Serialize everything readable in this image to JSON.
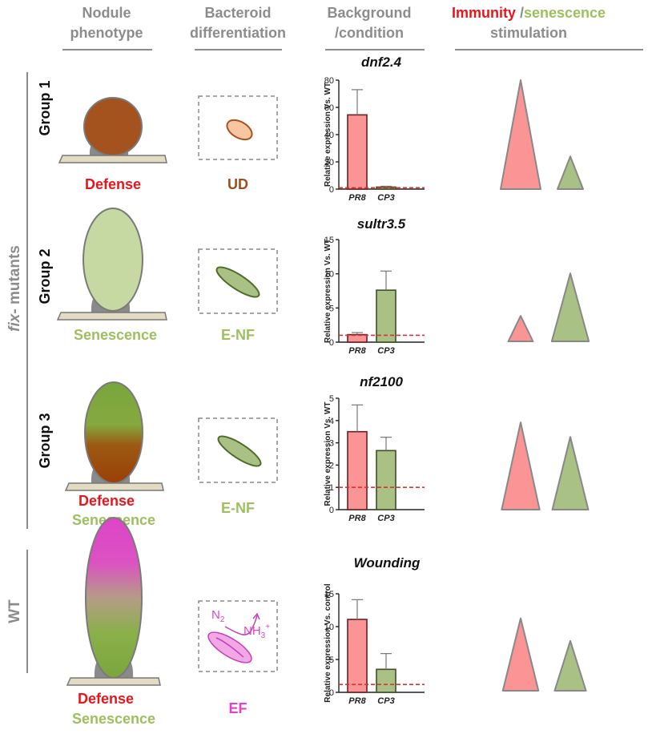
{
  "headers": {
    "nodule": [
      "Nodule",
      "phenotype"
    ],
    "bacteroid": [
      "Bacteroid",
      "differentiation"
    ],
    "background": [
      "Background",
      "/condition"
    ],
    "stim_immunity": "Immunity",
    "stim_sep": " /",
    "stim_senescence": "senescence",
    "stim_line2": "stimulation"
  },
  "side": {
    "fix_italic": "fix",
    "fix_rest": "- mutants",
    "wt": "WT",
    "groups": [
      "Group 1",
      "Group 2",
      "Group 3"
    ]
  },
  "rows": [
    {
      "phenotype": [
        "Defense"
      ],
      "bacteroid_label": "UD"
    },
    {
      "phenotype": [
        "Senescence"
      ],
      "bacteroid_label": "E-NF"
    },
    {
      "phenotype": [
        "Defense",
        "Senescence"
      ],
      "bacteroid_label": "E-NF"
    },
    {
      "phenotype": [
        "Defense",
        "Senescence"
      ],
      "bacteroid_label": "EF"
    }
  ],
  "molecules": {
    "n2": "N",
    "n2_sub": "2",
    "nh3": "NH",
    "nh3_sub": "3",
    "nh3_sup": "+"
  },
  "colors": {
    "defense": "#e8161b",
    "senescence": "#9dbf5e",
    "ud": "#9c4f1f",
    "ef": "#dd44c8",
    "pr8": "#fb9595",
    "cp3": "#a9c184",
    "header": "#8c8c8c",
    "threshold": "#e03030"
  },
  "chart_data": [
    {
      "type": "bar",
      "title": "dnf2.4",
      "ylabel": "Relative expression Vs.  WT",
      "categories": [
        "PR8",
        "CP3"
      ],
      "values": [
        54.5,
        1.5
      ],
      "errors": [
        18.5,
        0.6
      ],
      "ylim": [
        0,
        80
      ],
      "yticks": [
        0,
        20,
        40,
        60,
        80
      ],
      "threshold": 1
    },
    {
      "type": "bar",
      "title": "sultr3.5",
      "ylabel": "Relative expression Vs.  WT",
      "categories": [
        "PR8",
        "CP3"
      ],
      "values": [
        1.1,
        7.6
      ],
      "errors": [
        0.3,
        2.8
      ],
      "ylim": [
        0,
        15
      ],
      "yticks": [
        0,
        5,
        10,
        15
      ],
      "threshold": 1
    },
    {
      "type": "bar",
      "title": "nf2100",
      "ylabel": "Relative expression Vs.  WT",
      "categories": [
        "PR8",
        "CP3"
      ],
      "values": [
        3.5,
        2.65
      ],
      "errors": [
        1.2,
        0.6
      ],
      "ylim": [
        0,
        5
      ],
      "yticks": [
        0,
        1,
        2,
        3,
        4,
        5
      ],
      "threshold": 1
    },
    {
      "type": "bar",
      "title": "Wounding",
      "ylabel": "Relative expression Vs. control",
      "categories": [
        "PR8",
        "CP3"
      ],
      "values": [
        11.1,
        3.5
      ],
      "errors": [
        3.0,
        2.4
      ],
      "ylim": [
        0,
        15
      ],
      "yticks": [
        0,
        5,
        10,
        15
      ],
      "threshold": 1.2
    }
  ],
  "stimulation": [
    {
      "immunity": 1.0,
      "senescence": 0.3
    },
    {
      "immunity": 0.3,
      "senescence": 0.8
    },
    {
      "immunity": 0.9,
      "senescence": 0.75
    },
    {
      "immunity": 0.8,
      "senescence": 0.55
    }
  ]
}
